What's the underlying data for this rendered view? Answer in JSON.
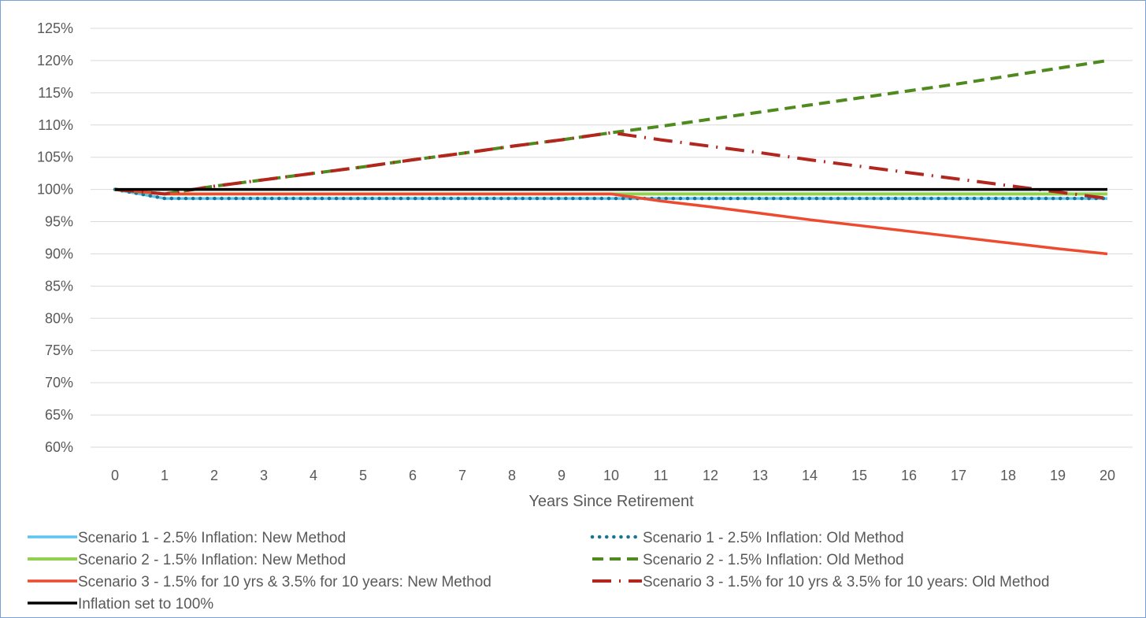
{
  "chart_data": {
    "type": "line",
    "title": "",
    "xlabel": "Years Since Retirement",
    "ylabel": "",
    "x": [
      0,
      1,
      2,
      3,
      4,
      5,
      6,
      7,
      8,
      9,
      10,
      11,
      12,
      13,
      14,
      15,
      16,
      17,
      18,
      19,
      20
    ],
    "x_ticks": [
      "0",
      "1",
      "2",
      "3",
      "4",
      "5",
      "6",
      "7",
      "8",
      "9",
      "10",
      "11",
      "12",
      "13",
      "14",
      "15",
      "16",
      "17",
      "18",
      "19",
      "20"
    ],
    "ylim": [
      60,
      125
    ],
    "y_ticks": [
      60,
      65,
      70,
      75,
      80,
      85,
      90,
      95,
      100,
      105,
      110,
      115,
      120,
      125
    ],
    "y_tick_labels": [
      "60%",
      "65%",
      "70%",
      "75%",
      "80%",
      "85%",
      "90%",
      "95%",
      "100%",
      "105%",
      "110%",
      "115%",
      "120%",
      "125%"
    ],
    "grid": "horizontal",
    "legend_position": "bottom",
    "series": [
      {
        "name": "Scenario 1 - 2.5% Inflation: New Method",
        "color": "#5bc4f0",
        "style": "solid",
        "width": 3.5,
        "values": [
          100,
          98.6,
          98.6,
          98.6,
          98.6,
          98.6,
          98.6,
          98.6,
          98.6,
          98.6,
          98.6,
          98.6,
          98.6,
          98.6,
          98.6,
          98.6,
          98.6,
          98.6,
          98.6,
          98.6,
          98.6
        ]
      },
      {
        "name": "Scenario 1 - 2.5% Inflation: Old Method",
        "color": "#1f7391",
        "style": "dotted",
        "width": 4.5,
        "values": [
          100,
          98.6,
          98.6,
          98.6,
          98.6,
          98.6,
          98.6,
          98.6,
          98.6,
          98.6,
          98.6,
          98.6,
          98.6,
          98.6,
          98.6,
          98.6,
          98.6,
          98.6,
          98.6,
          98.6,
          98.6
        ]
      },
      {
        "name": "Scenario 2 - 1.5% Inflation: New Method",
        "color": "#92d050",
        "style": "solid",
        "width": 4,
        "values": [
          100,
          99.3,
          99.3,
          99.3,
          99.3,
          99.3,
          99.3,
          99.3,
          99.3,
          99.3,
          99.3,
          99.3,
          99.3,
          99.3,
          99.3,
          99.3,
          99.3,
          99.3,
          99.3,
          99.3,
          99.3
        ]
      },
      {
        "name": "Scenario 2 - 1.5% Inflation: Old Method",
        "color": "#4e8a1e",
        "style": "dashed",
        "width": 4,
        "values": [
          100,
          99.3,
          100.5,
          101.5,
          102.5,
          103.5,
          104.6,
          105.6,
          106.7,
          107.7,
          108.8,
          109.8,
          110.9,
          112,
          113.1,
          114.2,
          115.3,
          116.4,
          117.6,
          118.8,
          120
        ]
      },
      {
        "name": "Scenario 3 - 1.5% for 10 yrs & 3.5% for 10 years: New Method",
        "color": "#ee4a2f",
        "style": "solid",
        "width": 3.5,
        "values": [
          100,
          99.3,
          99.3,
          99.3,
          99.3,
          99.3,
          99.3,
          99.3,
          99.3,
          99.3,
          99.3,
          98.2,
          97.3,
          96.3,
          95.3,
          94.4,
          93.5,
          92.6,
          91.7,
          90.8,
          90
        ]
      },
      {
        "name": "Scenario 3 - 1.5% for 10 yrs & 3.5% for 10 years: Old Method",
        "color": "#b3261e",
        "style": "dashdot",
        "width": 4,
        "values": [
          100,
          99.3,
          100.5,
          101.5,
          102.5,
          103.5,
          104.6,
          105.6,
          106.7,
          107.7,
          108.8,
          107.7,
          106.7,
          105.7,
          104.6,
          103.6,
          102.6,
          101.6,
          100.6,
          99.6,
          98.6
        ]
      },
      {
        "name": "Inflation set to 100%",
        "color": "#000000",
        "style": "solid",
        "width": 3.5,
        "values": [
          100,
          100,
          100,
          100,
          100,
          100,
          100,
          100,
          100,
          100,
          100,
          100,
          100,
          100,
          100,
          100,
          100,
          100,
          100,
          100,
          100
        ]
      }
    ]
  },
  "colors": {
    "grid": "#d9d9d9",
    "frame": "#7aa0d8",
    "text": "#595959"
  }
}
